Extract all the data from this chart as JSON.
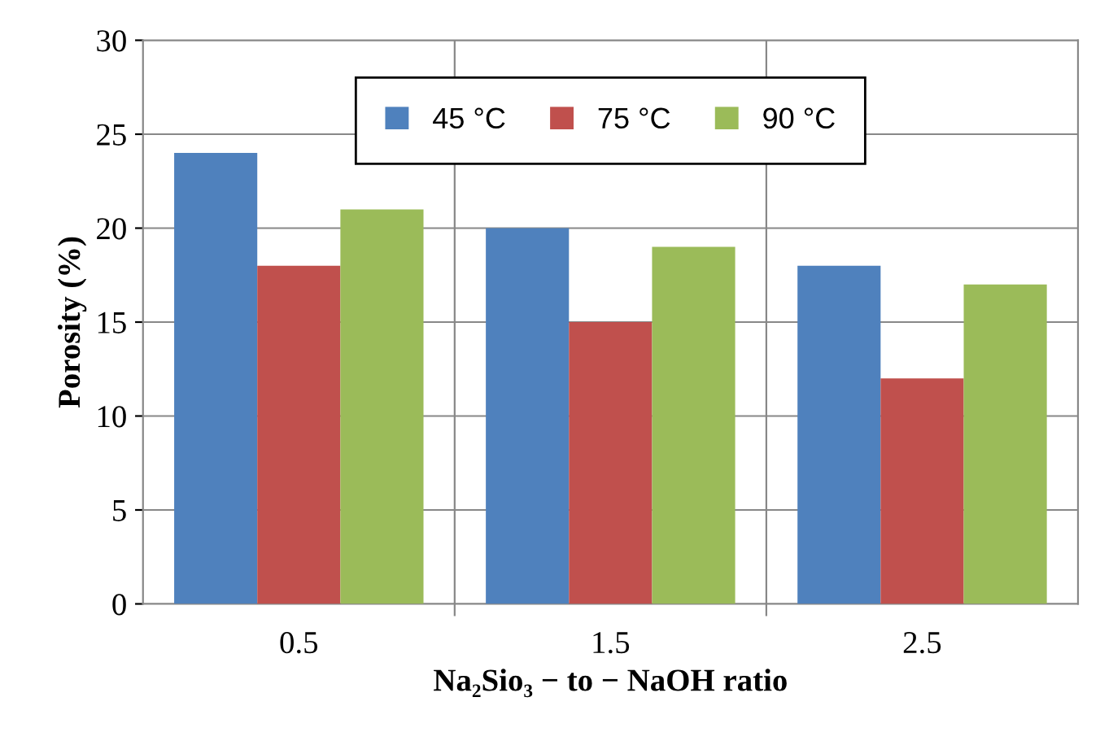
{
  "chart_data": {
    "type": "bar",
    "xlabel": "Na₂Sio₃ − to − NaOH ratio",
    "ylabel": "Porosity (%)",
    "categories": [
      "0.5",
      "1.5",
      "2.5"
    ],
    "series": [
      {
        "name": "45 °C",
        "color": "#4f81bd",
        "values": [
          24,
          20,
          18
        ]
      },
      {
        "name": "75 °C",
        "color": "#c0504d",
        "values": [
          18,
          15,
          12
        ]
      },
      {
        "name": "90 °C",
        "color": "#9bbb59",
        "values": [
          21,
          19,
          17
        ]
      }
    ],
    "ylim": [
      0,
      30
    ],
    "yticks": [
      0,
      5,
      10,
      15,
      20,
      25,
      30
    ],
    "grid": true,
    "legend": "top"
  }
}
